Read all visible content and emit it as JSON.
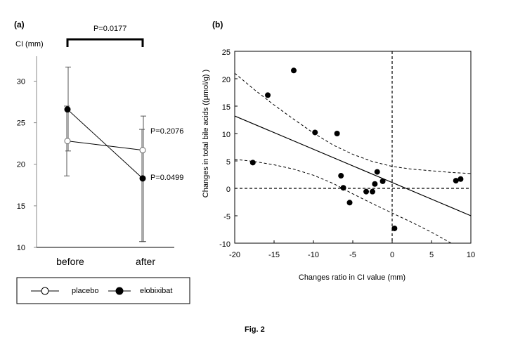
{
  "figure": {
    "caption": "Fig. 2"
  },
  "chart_data": [
    {
      "type": "line",
      "panel_label": "(a)",
      "ylabel": "CI (mm)",
      "categories": [
        "before",
        "after"
      ],
      "ylim": [
        10,
        33
      ],
      "yticks": [
        "10",
        "15",
        "20",
        "25",
        "30"
      ],
      "series": [
        {
          "name": "placebo",
          "marker": "open-circle",
          "values": [
            22.8,
            21.7
          ],
          "sd_low": [
            18.6,
            10.7
          ],
          "sd_high": [
            27.0,
            24.2
          ]
        },
        {
          "name": "elobixibat",
          "marker": "filled-circle",
          "values": [
            26.6,
            18.3
          ],
          "sd_low": [
            21.6,
            10.7
          ],
          "sd_high": [
            31.7,
            25.8
          ]
        }
      ],
      "annotations": {
        "bracket_label": "P=0.0177",
        "placebo_p": "P=0.2076",
        "elobixibat_p": "P=0.0499"
      },
      "legend": {
        "placement": "bottom",
        "labels": [
          "placebo",
          "elobixibat"
        ]
      }
    },
    {
      "type": "scatter",
      "panel_label": "(b)",
      "xlabel": "Changes ratio  in CI value (mm)",
      "ylabel": "Changes in total bile acids ((μmol/g) )",
      "xlim": [
        -20,
        10
      ],
      "ylim": [
        -10,
        25
      ],
      "xticks": [
        "-20",
        "-15",
        "-10",
        "-5",
        "0",
        "5",
        "10"
      ],
      "yticks": [
        "-10",
        "-5",
        "0",
        "5",
        "10",
        "15",
        "20",
        "25"
      ],
      "points": [
        {
          "x": -17.7,
          "y": 4.7
        },
        {
          "x": -15.8,
          "y": 17.0
        },
        {
          "x": -12.5,
          "y": 21.5
        },
        {
          "x": -9.8,
          "y": 10.2
        },
        {
          "x": -7.0,
          "y": 10.0
        },
        {
          "x": -6.5,
          "y": 2.3
        },
        {
          "x": -6.2,
          "y": 0.1
        },
        {
          "x": -5.4,
          "y": -2.6
        },
        {
          "x": -3.3,
          "y": -0.6
        },
        {
          "x": -2.5,
          "y": -0.6
        },
        {
          "x": -2.2,
          "y": 0.8
        },
        {
          "x": -1.9,
          "y": 3.0
        },
        {
          "x": -1.2,
          "y": 1.3
        },
        {
          "x": 0.3,
          "y": -7.3
        },
        {
          "x": 8.1,
          "y": 1.4
        },
        {
          "x": 8.7,
          "y": 1.7
        }
      ],
      "regression": {
        "x": [
          -20,
          10
        ],
        "y": [
          13.2,
          -5.0
        ]
      },
      "ci_upper": {
        "x": [
          -20,
          -17.5,
          -15,
          -12.5,
          -10,
          -7.5,
          -5,
          -2.5,
          0,
          2.5,
          5,
          7.5,
          10
        ],
        "y": [
          21.0,
          18.0,
          15.2,
          12.6,
          10.1,
          7.9,
          6.2,
          4.9,
          4.0,
          3.5,
          3.2,
          2.9,
          2.7
        ]
      },
      "ci_lower": {
        "x": [
          -20,
          -17.5,
          -15,
          -12.5,
          -10,
          -7.5,
          -5,
          -2.5,
          0,
          2.5,
          5,
          7.5
        ],
        "y": [
          5.3,
          4.9,
          4.3,
          3.5,
          2.4,
          0.9,
          -1.0,
          -2.8,
          -4.5,
          -6.2,
          -8.0,
          -10.0
        ]
      },
      "reference_lines": {
        "x": 0,
        "y": 0
      }
    }
  ]
}
